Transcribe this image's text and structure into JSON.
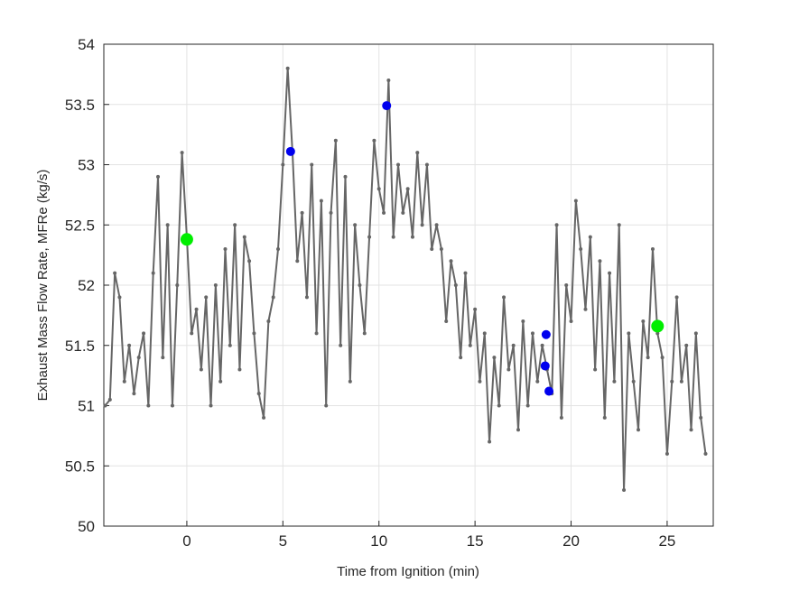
{
  "chart_data": {
    "type": "line",
    "xlabel": "Time from Ignition (min)",
    "ylabel": "Exhaust Mass Flow Rate, MFRe (kg/s)",
    "xlim": [
      -4.32,
      27.4
    ],
    "ylim": [
      50,
      54
    ],
    "xticks": [
      0,
      5,
      10,
      15,
      20,
      25
    ],
    "yticks": [
      50,
      50.5,
      51,
      51.5,
      52,
      52.5,
      53,
      53.5,
      54
    ],
    "grid": true,
    "series": [
      {
        "color": "#666666",
        "marker_size": 2,
        "x": [
          -4.25,
          -4.0,
          -3.75,
          -3.5,
          -3.25,
          -3.0,
          -2.75,
          -2.5,
          -2.25,
          -2.0,
          -1.75,
          -1.5,
          -1.25,
          -1.0,
          -0.75,
          -0.5,
          -0.25,
          0.0,
          0.25,
          0.5,
          0.75,
          1.0,
          1.25,
          1.5,
          1.75,
          2.0,
          2.25,
          2.5,
          2.75,
          3.0,
          3.25,
          3.5,
          3.75,
          4.0,
          4.25,
          4.5,
          4.75,
          5.0,
          5.25,
          5.5,
          5.75,
          6.0,
          6.25,
          6.5,
          6.75,
          7.0,
          7.25,
          7.5,
          7.75,
          8.0,
          8.25,
          8.5,
          8.75,
          9.0,
          9.25,
          9.5,
          9.75,
          10.0,
          10.25,
          10.5,
          10.75,
          11.0,
          11.25,
          11.5,
          11.75,
          12.0,
          12.25,
          12.5,
          12.75,
          13.0,
          13.25,
          13.5,
          13.75,
          14.0,
          14.25,
          14.5,
          14.75,
          15.0,
          15.25,
          15.5,
          15.75,
          16.0,
          16.25,
          16.5,
          16.75,
          17.0,
          17.25,
          17.5,
          17.75,
          18.0,
          18.25,
          18.5,
          18.75,
          19.0,
          19.25,
          19.5,
          19.75,
          20.0,
          20.25,
          20.5,
          20.75,
          21.0,
          21.25,
          21.5,
          21.75,
          22.0,
          22.25,
          22.5,
          22.75,
          23.0,
          23.25,
          23.5,
          23.75,
          24.0,
          24.25,
          24.5,
          24.75,
          25.0,
          25.25,
          25.5,
          25.75,
          26.0,
          26.25,
          26.5,
          26.75,
          27.0
        ],
        "values": [
          51.0,
          51.05,
          52.1,
          51.9,
          51.2,
          51.5,
          51.1,
          51.4,
          51.6,
          51.0,
          52.1,
          52.9,
          51.4,
          52.5,
          51.0,
          52.0,
          53.1,
          52.4,
          51.6,
          51.8,
          51.3,
          51.9,
          51.0,
          52.0,
          51.2,
          52.3,
          51.5,
          52.5,
          51.3,
          52.4,
          52.2,
          51.6,
          51.1,
          50.9,
          51.7,
          51.9,
          52.3,
          53.0,
          53.8,
          53.1,
          52.2,
          52.6,
          51.9,
          53.0,
          51.6,
          52.7,
          51.0,
          52.6,
          53.2,
          51.5,
          52.9,
          51.2,
          52.5,
          52.0,
          51.6,
          52.4,
          53.2,
          52.8,
          52.6,
          53.7,
          52.4,
          53.0,
          52.6,
          52.8,
          52.4,
          53.1,
          52.5,
          53.0,
          52.3,
          52.5,
          52.3,
          51.7,
          52.2,
          52.0,
          51.4,
          52.1,
          51.5,
          51.8,
          51.2,
          51.6,
          50.7,
          51.4,
          51.0,
          51.9,
          51.3,
          51.5,
          50.8,
          51.7,
          51.0,
          51.6,
          51.2,
          51.5,
          51.3,
          51.1,
          52.5,
          50.9,
          52.0,
          51.7,
          52.7,
          52.3,
          51.8,
          52.4,
          51.3,
          52.2,
          50.9,
          52.1,
          51.2,
          52.5,
          50.3,
          51.6,
          51.2,
          50.8,
          51.7,
          51.4,
          52.3,
          51.6,
          51.4,
          50.6,
          51.2,
          51.9,
          51.2,
          51.5,
          50.8,
          51.6,
          50.9,
          50.6
        ]
      },
      {
        "color": "#00ee00",
        "marker_size": 7,
        "line": false,
        "x": [
          0.0,
          24.5
        ],
        "values": [
          52.38,
          51.66
        ]
      },
      {
        "color": "#0000ee",
        "marker_size": 5,
        "line": false,
        "x": [
          5.4,
          10.4,
          18.7,
          18.65,
          18.85
        ],
        "values": [
          53.11,
          53.49,
          51.59,
          51.33,
          51.12
        ]
      }
    ]
  }
}
